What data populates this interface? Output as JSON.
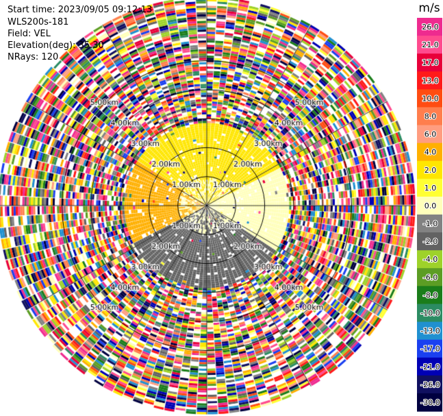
{
  "header": {
    "start_time": "Start time: 2023/09/05 09:12:13",
    "instrument": "WLS200s-181",
    "field": "Field: VEL",
    "elevation": "Elevation(deg): 35.30",
    "nrays": "NRays: 120"
  },
  "chart_data": {
    "type": "heatmap",
    "projection": "polar-ppi",
    "field": "VEL",
    "nrays": 120,
    "range_rings_km": [
      1.0,
      2.0,
      3.0,
      4.0,
      5.0
    ],
    "ring_label_texts": {
      "1": "1.00km",
      "2": "2.00km",
      "3": "3.00km",
      "4": "4.00km",
      "5": "5.00km"
    },
    "ring_label_bearings_deg": [
      45,
      135,
      225,
      315
    ],
    "spoke_bearings_deg": [
      0,
      30,
      60,
      90,
      120,
      150,
      180,
      210,
      240,
      270,
      300,
      330
    ],
    "max_range_km": 7.2,
    "near_field_km": 2.85,
    "near_field_pattern": {
      "north_sector_ms": 2.0,
      "west_sector_ms": 3.5,
      "east_sector_ms": 0.0,
      "south_sector_ms": -2.0
    },
    "far_field": "noise",
    "colorbar": {
      "unit": "m/s",
      "tick_labels": [
        "26.0",
        "21.0",
        "17.0",
        "13.0",
        "10.0",
        "8.0",
        "6.0",
        "4.0",
        "2.0",
        "1.0",
        "0.0",
        "-1.0",
        "-2.0",
        "-4.0",
        "-6.0",
        "-8.0",
        "-10.0",
        "-13.0",
        "-17.0",
        "-21.0",
        "-26.0",
        "-30.0"
      ],
      "colors": [
        "#ee2b8f",
        "#ff4b8e",
        "#e8003a",
        "#ff1a1a",
        "#ff4c12",
        "#ff7e4d",
        "#ff9d80",
        "#ffb000",
        "#ffe600",
        "#ffff33",
        "#ffffbb",
        "#828282",
        "#626262",
        "#9ed22a",
        "#5c9d24",
        "#1a7d1a",
        "#2c8c63",
        "#2090d0",
        "#1a40f0",
        "#0000b4",
        "#101060",
        "#000040"
      ]
    }
  }
}
